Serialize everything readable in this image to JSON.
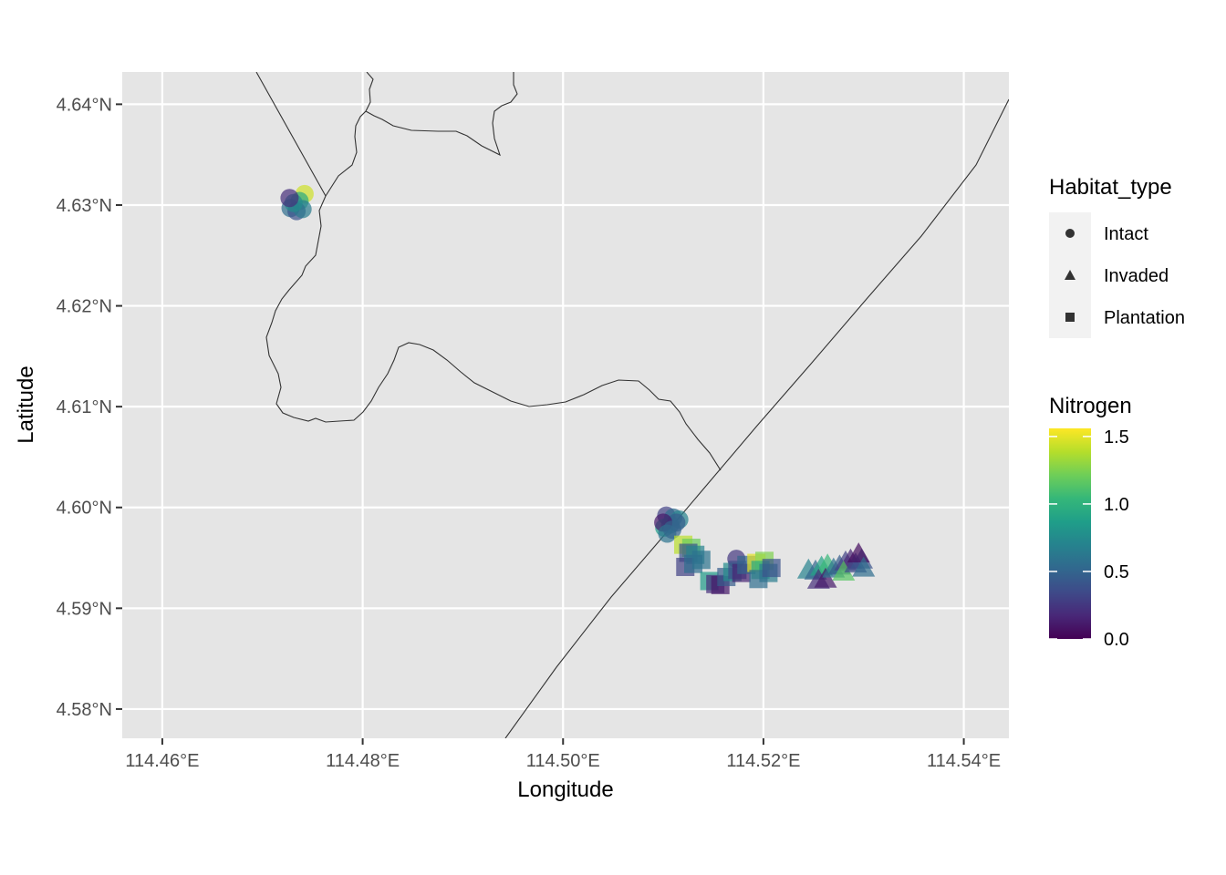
{
  "chart_data": {
    "type": "scatter",
    "xlabel": "Longitude",
    "ylabel": "Latitude",
    "xlim": [
      114.456,
      114.5445
    ],
    "ylim": [
      4.5771,
      4.6432
    ],
    "x_ticks": [
      114.46,
      114.48,
      114.5,
      114.52,
      114.54
    ],
    "x_tick_labels": [
      "114.46°E",
      "114.48°E",
      "114.50°E",
      "114.52°E",
      "114.54°E"
    ],
    "y_ticks": [
      4.58,
      4.59,
      4.6,
      4.61,
      4.62,
      4.63,
      4.64
    ],
    "y_tick_labels": [
      "4.58°N",
      "4.59°N",
      "4.60°N",
      "4.61°N",
      "4.62°N",
      "4.63°N",
      "4.64°N"
    ],
    "background": "#e5e5e5",
    "grid": true,
    "point_alpha": 0.7,
    "shape_legend": {
      "title": "Habitat_type",
      "entries": [
        {
          "label": "Intact",
          "shape": "circle"
        },
        {
          "label": "Invaded",
          "shape": "triangle"
        },
        {
          "label": "Plantation",
          "shape": "square"
        }
      ]
    },
    "color_legend": {
      "title": "Nitrogen",
      "range": [
        0.0,
        1.56
      ],
      "ticks": [
        0.0,
        0.5,
        1.0,
        1.5
      ],
      "tick_labels": [
        "0.0",
        "0.5",
        "1.0",
        "1.5"
      ],
      "palette": [
        "#440154",
        "#482878",
        "#3e4a89",
        "#31688e",
        "#26828e",
        "#1f9e89",
        "#35b779",
        "#6ece58",
        "#b5de2b",
        "#fde725"
      ]
    },
    "series": [
      {
        "name": "Intact",
        "shape": "circle",
        "points": [
          {
            "x": 114.4742,
            "y": 4.6311,
            "n": 1.45
          },
          {
            "x": 114.4737,
            "y": 4.6304,
            "n": 0.95
          },
          {
            "x": 114.4728,
            "y": 4.6297,
            "n": 0.55
          },
          {
            "x": 114.4734,
            "y": 4.6294,
            "n": 0.4
          },
          {
            "x": 114.474,
            "y": 4.6296,
            "n": 0.65
          },
          {
            "x": 114.4731,
            "y": 4.6302,
            "n": 0.75
          },
          {
            "x": 114.4727,
            "y": 4.6307,
            "n": 0.2
          },
          {
            "x": 114.5103,
            "y": 4.5992,
            "n": 0.3
          },
          {
            "x": 114.511,
            "y": 4.599,
            "n": 0.55
          },
          {
            "x": 114.5116,
            "y": 4.5988,
            "n": 0.7
          },
          {
            "x": 114.5101,
            "y": 4.598,
            "n": 0.85
          },
          {
            "x": 114.5107,
            "y": 4.5983,
            "n": 0.65
          },
          {
            "x": 114.5113,
            "y": 4.5985,
            "n": 0.45
          },
          {
            "x": 114.51,
            "y": 4.5985,
            "n": 0.1
          },
          {
            "x": 114.5104,
            "y": 4.5974,
            "n": 0.6
          },
          {
            "x": 114.5109,
            "y": 4.5978,
            "n": 0.5
          },
          {
            "x": 114.5173,
            "y": 4.5949,
            "n": 0.25
          }
        ]
      },
      {
        "name": "Invaded",
        "shape": "triangle",
        "points": [
          {
            "x": 114.5245,
            "y": 4.5937,
            "n": 0.7
          },
          {
            "x": 114.5252,
            "y": 4.5936,
            "n": 0.5
          },
          {
            "x": 114.5258,
            "y": 4.594,
            "n": 0.9
          },
          {
            "x": 114.5264,
            "y": 4.5942,
            "n": 1.05
          },
          {
            "x": 114.5255,
            "y": 4.5927,
            "n": 0.2
          },
          {
            "x": 114.5262,
            "y": 4.5928,
            "n": 0.1
          },
          {
            "x": 114.527,
            "y": 4.5938,
            "n": 0.6
          },
          {
            "x": 114.5276,
            "y": 4.5941,
            "n": 0.45
          },
          {
            "x": 114.5282,
            "y": 4.5945,
            "n": 0.3
          },
          {
            "x": 114.5287,
            "y": 4.5947,
            "n": 0.15
          },
          {
            "x": 114.528,
            "y": 4.5935,
            "n": 1.15
          },
          {
            "x": 114.5292,
            "y": 4.5943,
            "n": 0.35
          },
          {
            "x": 114.5298,
            "y": 4.5947,
            "n": 0.4
          },
          {
            "x": 114.5295,
            "y": 4.5953,
            "n": 0.05
          },
          {
            "x": 114.53,
            "y": 4.5939,
            "n": 0.55
          }
        ]
      },
      {
        "name": "Plantation",
        "shape": "square",
        "points": [
          {
            "x": 114.512,
            "y": 4.5963,
            "n": 1.4
          },
          {
            "x": 114.5128,
            "y": 4.596,
            "n": 1.2
          },
          {
            "x": 114.5125,
            "y": 4.5955,
            "n": 0.4
          },
          {
            "x": 114.5132,
            "y": 4.5953,
            "n": 0.7
          },
          {
            "x": 114.5122,
            "y": 4.5941,
            "n": 0.3
          },
          {
            "x": 114.513,
            "y": 4.5944,
            "n": 0.55
          },
          {
            "x": 114.5138,
            "y": 4.5948,
            "n": 0.6
          },
          {
            "x": 114.5146,
            "y": 4.5927,
            "n": 0.85
          },
          {
            "x": 114.5152,
            "y": 4.5924,
            "n": 0.2
          },
          {
            "x": 114.5157,
            "y": 4.5923,
            "n": 0.1
          },
          {
            "x": 114.5163,
            "y": 4.5931,
            "n": 0.45
          },
          {
            "x": 114.5169,
            "y": 4.5936,
            "n": 0.75
          },
          {
            "x": 114.5174,
            "y": 4.5938,
            "n": 0.35
          },
          {
            "x": 114.5178,
            "y": 4.5935,
            "n": 0.15
          },
          {
            "x": 114.5183,
            "y": 4.5943,
            "n": 0.5
          },
          {
            "x": 114.5193,
            "y": 4.5945,
            "n": 1.5
          },
          {
            "x": 114.5201,
            "y": 4.5947,
            "n": 1.25
          },
          {
            "x": 114.5197,
            "y": 4.5938,
            "n": 0.95
          },
          {
            "x": 114.5205,
            "y": 4.5935,
            "n": 0.65
          },
          {
            "x": 114.5195,
            "y": 4.5929,
            "n": 0.55
          },
          {
            "x": 114.5208,
            "y": 4.594,
            "n": 0.4
          }
        ]
      }
    ],
    "boundaries": [
      {
        "name": "coastline",
        "coords": [
          [
            114.4732,
            4.6632
          ],
          [
            114.4736,
            4.6635
          ],
          [
            114.4745,
            4.6432
          ],
          [
            114.4748,
            4.6418
          ],
          [
            114.4745,
            4.641
          ],
          [
            114.4748,
            4.6399
          ],
          [
            114.4738,
            4.6388
          ],
          [
            114.4728,
            4.6381
          ],
          [
            114.4724,
            4.6372
          ],
          [
            114.4723,
            4.6362
          ],
          [
            114.4721,
            4.6355
          ],
          [
            114.4714,
            4.6344
          ],
          [
            114.4698,
            4.6335
          ],
          [
            114.468,
            4.6327
          ],
          [
            114.4662,
            4.6322
          ],
          [
            114.463,
            4.6315
          ],
          [
            114.4606,
            4.6308
          ],
          [
            114.4575,
            4.6301
          ],
          [
            114.4561,
            4.6297
          ]
        ]
      },
      {
        "name": "river",
        "coords": [
          [
            114.4793,
            4.6435
          ],
          [
            114.4796,
            4.6429
          ],
          [
            114.4792,
            4.6425
          ],
          [
            114.4794,
            4.6418
          ],
          [
            114.479,
            4.6408
          ],
          [
            114.4788,
            4.6395
          ],
          [
            114.4793,
            4.6389
          ],
          [
            114.4799,
            4.6389
          ],
          [
            114.4804,
            4.6388
          ],
          [
            114.4818,
            4.6385
          ],
          [
            114.4842,
            4.6383
          ],
          [
            114.487,
            4.6382
          ],
          [
            114.4885,
            4.6382
          ],
          [
            114.49,
            4.6381
          ],
          [
            114.4915,
            4.6376
          ],
          [
            114.494,
            4.6366
          ],
          [
            114.4945,
            4.6373
          ],
          [
            114.4948,
            4.6385
          ],
          [
            114.4949,
            4.6395
          ],
          [
            114.4953,
            4.6408
          ],
          [
            114.4962,
            4.6414
          ],
          [
            114.4966,
            4.6421
          ],
          [
            114.4963,
            4.6427
          ],
          [
            114.4965,
            4.6435
          ]
        ]
      },
      {
        "name": "border",
        "coords": [
          [
            114.49,
            4.576
          ],
          [
            114.496,
            4.5839
          ],
          [
            114.502,
            4.5909
          ],
          [
            114.508,
            4.5974
          ],
          [
            114.514,
            4.6039
          ],
          [
            114.52,
            4.6099
          ],
          [
            114.526,
            4.6164
          ],
          [
            114.532,
            4.6229
          ],
          [
            114.538,
            4.6294
          ],
          [
            114.544,
            4.6358
          ],
          [
            114.55,
            4.6422
          ]
        ]
      },
      {
        "name": "border-north",
        "coords": [
          [
            114.453,
            4.678
          ],
          [
            114.459,
            4.6689
          ],
          [
            114.465,
            4.6594
          ],
          [
            114.47,
            4.6512
          ],
          [
            114.473,
            4.6462
          ],
          [
            114.4748,
            4.6432
          ],
          [
            114.476,
            4.6414
          ],
          [
            114.4768,
            4.6392
          ],
          [
            114.477,
            4.6378
          ],
          [
            114.4765,
            4.6362
          ],
          [
            114.4755,
            4.6342
          ],
          [
            114.4745,
            4.6327
          ],
          [
            114.4735,
            4.6312
          ]
        ]
      }
    ],
    "boundary_paths_px": []
  }
}
